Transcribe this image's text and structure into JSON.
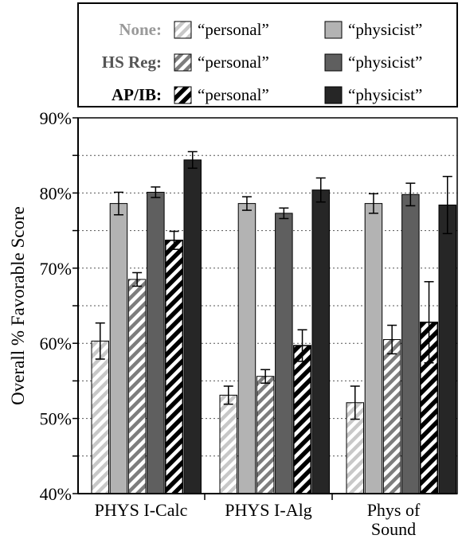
{
  "chart_data": {
    "type": "bar",
    "title": "",
    "xlabel": "",
    "ylabel": "Overall % Favorable Score",
    "ylim": [
      40,
      90
    ],
    "yticks": [
      "40%",
      "50%",
      "60%",
      "70%",
      "80%",
      "90%"
    ],
    "grid": "horizontal dotted",
    "legend_position": "top",
    "categories": [
      "PHYS I-Calc",
      "PHYS I-Alg",
      "Phys of Sound"
    ],
    "category_lines": [
      [
        "PHYS I-Calc"
      ],
      [
        "PHYS I-Alg"
      ],
      [
        "Phys of",
        "Sound"
      ]
    ],
    "legend": {
      "rows": [
        {
          "group": "None:",
          "group_color": "#999999",
          "personal": "“personal”",
          "physicist": "“physicist”"
        },
        {
          "group": "HS Reg:",
          "group_color": "#555555",
          "personal": "“personal”",
          "physicist": "“physicist”"
        },
        {
          "group": "AP/IB:",
          "group_color": "#000000",
          "personal": "“personal”",
          "physicist": "“physicist”"
        }
      ]
    },
    "series": [
      {
        "group": "None",
        "kind": "personal",
        "color": "#cfcfcf",
        "values": [
          60.3,
          53.1,
          52.1
        ],
        "err": [
          2.4,
          1.2,
          2.2
        ]
      },
      {
        "group": "None",
        "kind": "physicist",
        "color": "#b3b3b3",
        "values": [
          78.6,
          78.6,
          78.6
        ],
        "err": [
          1.5,
          0.9,
          1.3
        ]
      },
      {
        "group": "HS Reg",
        "kind": "personal",
        "color": "#8a8a8a",
        "values": [
          68.5,
          55.6,
          60.5
        ],
        "err": [
          0.9,
          0.9,
          1.9
        ]
      },
      {
        "group": "HS Reg",
        "kind": "physicist",
        "color": "#5f5f5f",
        "values": [
          80.1,
          77.3,
          79.8
        ],
        "err": [
          0.7,
          0.7,
          1.5
        ]
      },
      {
        "group": "AP/IB",
        "kind": "personal",
        "color": "#111111",
        "values": [
          73.7,
          59.7,
          62.8
        ],
        "err": [
          1.2,
          2.1,
          5.4
        ]
      },
      {
        "group": "AP/IB",
        "kind": "physicist",
        "color": "#262626",
        "values": [
          84.4,
          80.4,
          78.4
        ],
        "err": [
          1.1,
          1.6,
          3.8
        ]
      }
    ]
  }
}
